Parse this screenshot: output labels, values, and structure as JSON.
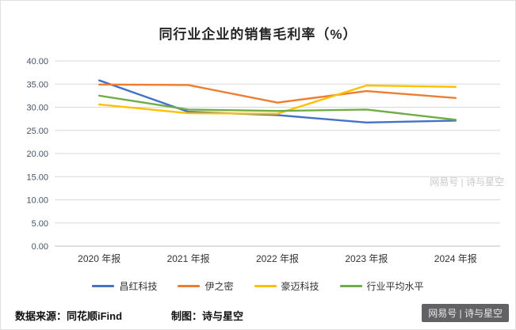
{
  "title": "同行业企业的销售毛利率（%）",
  "chart_data": {
    "type": "line",
    "title": "同行业企业的销售毛利率（%）",
    "categories": [
      "2020 年报",
      "2021 年报",
      "2022 年报",
      "2023 年报",
      "2024 年报"
    ],
    "series": [
      {
        "name": "昌红科技",
        "color": "#4472C4",
        "values": [
          35.8,
          29.0,
          28.3,
          26.7,
          27.1
        ]
      },
      {
        "name": "伊之密",
        "color": "#ED7D31",
        "values": [
          34.9,
          34.8,
          31.0,
          33.5,
          32.0
        ]
      },
      {
        "name": "豪迈科技",
        "color": "#FFC000",
        "values": [
          30.6,
          28.7,
          28.6,
          34.7,
          34.4
        ]
      },
      {
        "name": "行业平均水平",
        "color": "#70AD47",
        "values": [
          32.5,
          29.5,
          29.2,
          29.5,
          27.3
        ]
      }
    ],
    "ylim": [
      0,
      40
    ],
    "ytick_step": 5,
    "ytick_labels": [
      "0.00",
      "5.00",
      "10.00",
      "15.00",
      "20.00",
      "25.00",
      "30.00",
      "35.00",
      "40.00"
    ],
    "grid": true,
    "legend_position": "bottom"
  },
  "footer": {
    "source": "数据来源：同花顺iFind",
    "credit": "制图：诗与星空"
  },
  "watermarks": {
    "mid": "网易号 | 诗与星空",
    "bottom": "网易号 | 诗与星空"
  }
}
